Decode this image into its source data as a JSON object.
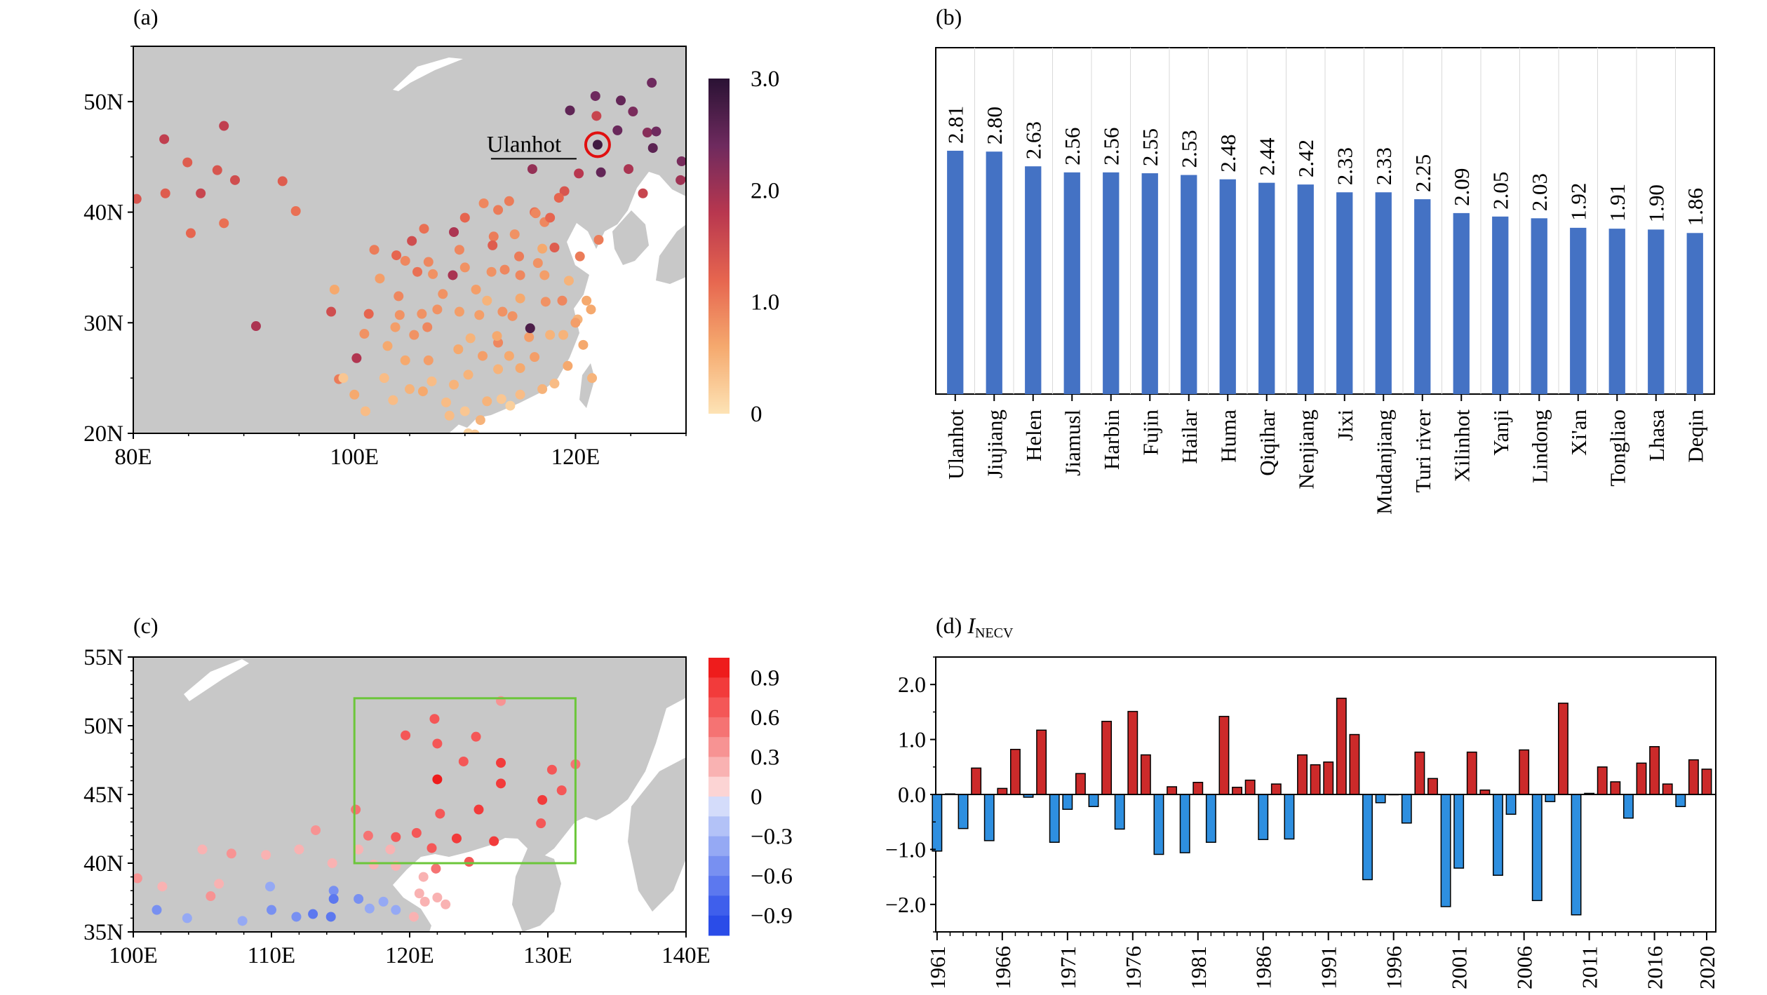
{
  "panels": {
    "a": {
      "label": "(a)",
      "annotation": "Ulanhot"
    },
    "b": {
      "label": "(b)"
    },
    "c": {
      "label": "(c)"
    },
    "d": {
      "label_prefix": "(d) ",
      "label_var": "I",
      "label_sub": "NECV"
    }
  },
  "colors": {
    "land": "#c8c8c8",
    "ocean": "#ffffff",
    "bar_b": "#4472c4",
    "bar_pos": "#cc2a2a",
    "bar_neg": "#2e8fe0",
    "box": "#6cc63a",
    "highlight": "#e01010"
  },
  "chart_data": [
    {
      "id": "a",
      "type": "scatter",
      "map": true,
      "xlim": [
        80,
        130
      ],
      "ylim": [
        20,
        55
      ],
      "x_ticks": [
        80,
        100,
        120
      ],
      "x_tick_labels": [
        "80E",
        "100E",
        "120E"
      ],
      "y_ticks": [
        20,
        30,
        40,
        50
      ],
      "y_tick_labels": [
        "20N",
        "30N",
        "40N",
        "50N"
      ],
      "colorbar": {
        "min": 0,
        "max": 3.0,
        "ticks": [
          "0",
          "1.0",
          "2.0",
          "3.0"
        ],
        "colors": [
          "#fde3b5",
          "#f5a96e",
          "#e6654f",
          "#b8374f",
          "#6e2a5e",
          "#2a1234"
        ]
      },
      "highlight": {
        "lon": 122.0,
        "lat": 46.1,
        "value": 2.81
      },
      "points": [
        [
          122.0,
          46.1,
          2.81
        ],
        [
          121.8,
          50.5,
          2.4
        ],
        [
          124.1,
          50.1,
          2.5
        ],
        [
          119.5,
          49.2,
          2.53
        ],
        [
          121.9,
          48.7,
          1.6
        ],
        [
          123.8,
          47.4,
          2.44
        ],
        [
          126.5,
          47.2,
          2.2
        ],
        [
          125.2,
          49.1,
          2.3
        ],
        [
          127.0,
          45.8,
          2.56
        ],
        [
          129.6,
          44.6,
          2.33
        ],
        [
          122.3,
          43.6,
          2.5
        ],
        [
          124.8,
          43.9,
          1.91
        ],
        [
          126.9,
          51.7,
          2.4
        ],
        [
          127.3,
          47.3,
          2.4
        ],
        [
          130.3,
          43.0,
          2.05
        ],
        [
          119.0,
          41.9,
          1.4
        ],
        [
          116.1,
          43.9,
          2.09
        ],
        [
          120.3,
          43.5,
          1.8
        ],
        [
          129.5,
          42.9,
          2.0
        ],
        [
          126.1,
          41.7,
          1.6
        ],
        [
          118.5,
          41.3,
          1.2
        ],
        [
          114.0,
          41.0,
          1.0
        ],
        [
          111.7,
          40.8,
          0.9
        ],
        [
          109.0,
          38.2,
          1.9
        ],
        [
          116.3,
          40.0,
          1.1
        ],
        [
          117.2,
          39.1,
          0.9
        ],
        [
          113.0,
          40.2,
          1.0
        ],
        [
          112.6,
          37.8,
          1.0
        ],
        [
          114.5,
          38.0,
          0.8
        ],
        [
          116.4,
          39.9,
          0.9
        ],
        [
          117.0,
          36.7,
          0.6
        ],
        [
          120.4,
          36.0,
          1.0
        ],
        [
          118.8,
          32.0,
          0.9
        ],
        [
          121.4,
          31.2,
          0.6
        ],
        [
          120.2,
          30.3,
          0.5
        ],
        [
          117.3,
          31.9,
          0.8
        ],
        [
          115.8,
          28.7,
          0.7
        ],
        [
          114.3,
          30.6,
          0.8
        ],
        [
          113.0,
          28.2,
          0.9
        ],
        [
          115.9,
          29.5,
          2.7
        ],
        [
          112.9,
          28.8,
          0.6
        ],
        [
          108.9,
          34.3,
          1.92
        ],
        [
          103.8,
          36.1,
          1.2
        ],
        [
          101.8,
          36.6,
          1.0
        ],
        [
          106.3,
          38.5,
          1.1
        ],
        [
          104.1,
          30.7,
          0.8
        ],
        [
          106.6,
          29.6,
          0.9
        ],
        [
          106.7,
          26.6,
          0.7
        ],
        [
          102.7,
          25.0,
          0.4
        ],
        [
          108.3,
          22.8,
          0.4
        ],
        [
          110.3,
          25.3,
          0.5
        ],
        [
          113.3,
          23.1,
          0.3
        ],
        [
          114.1,
          22.5,
          0.2
        ],
        [
          110.3,
          20.0,
          0.2
        ],
        [
          119.3,
          26.1,
          0.6
        ],
        [
          118.1,
          24.5,
          0.4
        ],
        [
          121.5,
          25.0,
          0.5
        ],
        [
          117.7,
          39.5,
          1.2
        ],
        [
          122.1,
          37.5,
          1.0
        ],
        [
          118.1,
          36.8,
          1.3
        ],
        [
          87.6,
          43.8,
          1.4
        ],
        [
          86.1,
          41.7,
          1.6
        ],
        [
          89.2,
          42.9,
          1.5
        ],
        [
          84.9,
          44.5,
          1.3
        ],
        [
          82.8,
          46.6,
          1.7
        ],
        [
          88.2,
          47.8,
          1.7
        ],
        [
          80.3,
          41.2,
          1.4
        ],
        [
          82.9,
          41.7,
          1.3
        ],
        [
          85.2,
          38.1,
          1.2
        ],
        [
          88.2,
          39.0,
          1.1
        ],
        [
          93.5,
          42.8,
          1.3
        ],
        [
          94.7,
          40.1,
          1.1
        ],
        [
          91.1,
          29.7,
          1.9
        ],
        [
          100.2,
          26.8,
          1.86
        ],
        [
          98.6,
          24.9,
          1.0
        ],
        [
          97.9,
          31.0,
          1.5
        ],
        [
          98.2,
          33.0,
          0.6
        ],
        [
          102.3,
          34.0,
          0.7
        ],
        [
          100.9,
          29.0,
          0.8
        ],
        [
          101.3,
          30.8,
          1.2
        ],
        [
          104.6,
          35.6,
          0.9
        ],
        [
          106.7,
          35.5,
          0.9
        ],
        [
          105.7,
          34.6,
          1.1
        ],
        [
          107.1,
          34.4,
          0.8
        ],
        [
          109.5,
          36.6,
          0.9
        ],
        [
          110.0,
          35.0,
          0.8
        ],
        [
          111.0,
          33.0,
          0.7
        ],
        [
          112.4,
          34.6,
          0.8
        ],
        [
          113.6,
          34.8,
          0.9
        ],
        [
          115.0,
          34.3,
          0.9
        ],
        [
          116.6,
          35.4,
          0.8
        ],
        [
          114.9,
          36.0,
          1.0
        ],
        [
          108.0,
          32.6,
          0.8
        ],
        [
          109.5,
          31.0,
          0.7
        ],
        [
          111.3,
          30.7,
          0.7
        ],
        [
          113.4,
          31.0,
          0.8
        ],
        [
          112.0,
          32.0,
          0.5
        ],
        [
          110.5,
          28.6,
          0.5
        ],
        [
          109.4,
          27.6,
          0.6
        ],
        [
          111.6,
          27.0,
          0.7
        ],
        [
          113.0,
          25.8,
          0.5
        ],
        [
          115.0,
          25.9,
          0.6
        ],
        [
          114.0,
          27.0,
          0.6
        ],
        [
          116.3,
          26.9,
          0.7
        ],
        [
          117.7,
          28.9,
          0.5
        ],
        [
          118.9,
          28.9,
          0.5
        ],
        [
          120.7,
          28.0,
          0.6
        ],
        [
          120.0,
          30.0,
          0.7
        ],
        [
          121.0,
          32.0,
          0.6
        ],
        [
          119.4,
          33.8,
          0.5
        ],
        [
          117.2,
          34.3,
          0.7
        ],
        [
          115.0,
          32.2,
          0.6
        ],
        [
          105.4,
          28.9,
          0.8
        ],
        [
          107.5,
          31.2,
          0.8
        ],
        [
          103.7,
          29.6,
          0.7
        ],
        [
          104.6,
          26.6,
          0.6
        ],
        [
          103.0,
          27.9,
          0.6
        ],
        [
          105.0,
          24.0,
          0.5
        ],
        [
          107.0,
          24.7,
          0.4
        ],
        [
          109.0,
          24.4,
          0.5
        ],
        [
          110.0,
          22.0,
          0.3
        ],
        [
          112.0,
          22.9,
          0.5
        ],
        [
          115.0,
          23.5,
          0.4
        ],
        [
          117.0,
          24.0,
          0.5
        ],
        [
          101.0,
          22.0,
          0.4
        ],
        [
          100.0,
          23.5,
          0.6
        ],
        [
          99.0,
          25.0,
          0.3
        ],
        [
          103.5,
          23.0,
          0.4
        ],
        [
          111.4,
          21.2,
          0.5
        ],
        [
          108.6,
          21.6,
          0.4
        ],
        [
          106.2,
          23.8,
          0.6
        ],
        [
          110.9,
          19.9,
          0.3
        ],
        [
          104.0,
          32.4,
          0.9
        ],
        [
          106.1,
          30.8,
          0.8
        ],
        [
          112.5,
          37.0,
          1.3
        ],
        [
          110.0,
          39.5,
          1.2
        ],
        [
          105.2,
          37.4,
          1.5
        ]
      ]
    },
    {
      "id": "b",
      "type": "bar",
      "categories": [
        "Ulanhot",
        "Jiujiang",
        "Helen",
        "Jiamusl",
        "Harbin",
        "Fujin",
        "Hailar",
        "Huma",
        "Qiqihar",
        "Nenjiang",
        "Jixi",
        "Mudanjiang",
        "Turi river",
        "Xilinhot",
        "Yanji",
        "Lindong",
        "Xi'an",
        "Tongliao",
        "Lhasa",
        "Deqin"
      ],
      "values": [
        2.81,
        2.8,
        2.63,
        2.56,
        2.56,
        2.55,
        2.53,
        2.48,
        2.44,
        2.42,
        2.33,
        2.33,
        2.25,
        2.09,
        2.05,
        2.03,
        1.92,
        1.91,
        1.9,
        1.86
      ],
      "value_labels": [
        "2.81",
        "2.80",
        "2.63",
        "2.56",
        "2.56",
        "2.55",
        "2.53",
        "2.48",
        "2.44",
        "2.42",
        "2.33",
        "2.33",
        "2.25",
        "2.09",
        "2.05",
        "2.03",
        "1.92",
        "1.91",
        "1.90",
        "1.86"
      ],
      "ylim": [
        0,
        4.0
      ]
    },
    {
      "id": "c",
      "type": "scatter",
      "map": true,
      "xlim": [
        100,
        140
      ],
      "ylim": [
        35,
        55
      ],
      "x_ticks": [
        100,
        110,
        120,
        130,
        140
      ],
      "x_tick_labels": [
        "100E",
        "110E",
        "120E",
        "130E",
        "140E"
      ],
      "y_ticks": [
        35,
        40,
        45,
        50,
        55
      ],
      "y_tick_labels": [
        "35N",
        "40N",
        "45N",
        "50N",
        "55N"
      ],
      "colorbar": {
        "levels": [
          1.05,
          0.9,
          0.75,
          0.6,
          0.45,
          0.3,
          0.15,
          0,
          -0.15,
          -0.3,
          -0.45,
          -0.6,
          -0.75,
          -0.9,
          -1.05
        ],
        "colors": [
          "#ee1c1c",
          "#f23b3b",
          "#f45757",
          "#f57373",
          "#f79393",
          "#f9b2b2",
          "#fcd4d4",
          "#d4dcfa",
          "#b3c2f7",
          "#95a9f4",
          "#7890f1",
          "#5c78ef",
          "#3f5fec",
          "#2a4ce8"
        ],
        "tick_labels": [
          "0.9",
          "0.6",
          "0.3",
          "0",
          "−0.3",
          "−0.6",
          "−0.9"
        ],
        "tick_values": [
          0.9,
          0.6,
          0.3,
          0,
          -0.3,
          -0.6,
          -0.9
        ]
      },
      "box": {
        "lon": [
          116,
          132
        ],
        "lat": [
          40,
          52
        ]
      },
      "points": [
        [
          122.0,
          46.1,
          0.95
        ],
        [
          121.8,
          50.5,
          0.7
        ],
        [
          124.8,
          49.2,
          0.7
        ],
        [
          119.7,
          49.3,
          0.75
        ],
        [
          122.0,
          48.7,
          0.7
        ],
        [
          123.9,
          47.4,
          0.72
        ],
        [
          126.6,
          47.3,
          0.8
        ],
        [
          126.6,
          45.8,
          0.8
        ],
        [
          126.6,
          51.8,
          0.45
        ],
        [
          130.3,
          46.8,
          0.75
        ],
        [
          131.0,
          45.3,
          0.75
        ],
        [
          129.6,
          44.6,
          0.8
        ],
        [
          122.2,
          43.6,
          0.75
        ],
        [
          125.0,
          43.9,
          0.8
        ],
        [
          129.5,
          42.9,
          0.7
        ],
        [
          132.0,
          47.2,
          0.5
        ],
        [
          116.1,
          43.9,
          0.55
        ],
        [
          117.0,
          42.0,
          0.6
        ],
        [
          119.0,
          41.9,
          0.7
        ],
        [
          120.5,
          42.2,
          0.75
        ],
        [
          121.6,
          41.1,
          0.75
        ],
        [
          123.4,
          41.8,
          0.8
        ],
        [
          126.1,
          41.6,
          0.8
        ],
        [
          124.3,
          40.1,
          0.7
        ],
        [
          118.6,
          41.0,
          0.3
        ],
        [
          116.3,
          41.0,
          0.25
        ],
        [
          117.4,
          39.9,
          0.25
        ],
        [
          119.0,
          39.8,
          0.2
        ],
        [
          121.9,
          39.6,
          0.5
        ],
        [
          121.0,
          39.0,
          0.2
        ],
        [
          122.0,
          37.5,
          0.3
        ],
        [
          120.7,
          37.8,
          0.2
        ],
        [
          118.1,
          37.2,
          -0.3
        ],
        [
          114.4,
          40.0,
          0.25
        ],
        [
          113.2,
          42.4,
          0.4
        ],
        [
          112.0,
          41.0,
          0.3
        ],
        [
          109.6,
          40.6,
          0.2
        ],
        [
          107.1,
          40.7,
          0.35
        ],
        [
          105.0,
          41.0,
          0.3
        ],
        [
          102.1,
          38.3,
          0.3
        ],
        [
          100.3,
          38.9,
          0.4
        ],
        [
          101.7,
          36.6,
          -0.5
        ],
        [
          103.9,
          36.0,
          -0.4
        ],
        [
          105.6,
          37.6,
          0.4
        ],
        [
          106.2,
          38.5,
          0.3
        ],
        [
          107.9,
          35.8,
          -0.35
        ],
        [
          109.9,
          38.3,
          -0.3
        ],
        [
          110.0,
          36.6,
          -0.45
        ],
        [
          111.8,
          36.1,
          -0.55
        ],
        [
          113.0,
          36.3,
          -0.7
        ],
        [
          114.5,
          38.0,
          -0.5
        ],
        [
          114.5,
          37.4,
          -0.6
        ],
        [
          114.3,
          36.1,
          -0.7
        ],
        [
          116.3,
          37.4,
          -0.55
        ],
        [
          117.1,
          36.7,
          -0.4
        ],
        [
          119.0,
          36.6,
          -0.3
        ],
        [
          120.3,
          36.1,
          0.3
        ],
        [
          122.6,
          37.0,
          0.3
        ],
        [
          121.1,
          37.2,
          0.3
        ]
      ]
    },
    {
      "id": "d",
      "type": "bar",
      "x": [
        1961,
        1962,
        1963,
        1964,
        1965,
        1966,
        1967,
        1968,
        1969,
        1970,
        1971,
        1972,
        1973,
        1974,
        1975,
        1976,
        1977,
        1978,
        1979,
        1980,
        1981,
        1982,
        1983,
        1984,
        1985,
        1986,
        1987,
        1988,
        1989,
        1990,
        1991,
        1992,
        1993,
        1994,
        1995,
        1996,
        1997,
        1998,
        1999,
        2000,
        2001,
        2002,
        2003,
        2004,
        2005,
        2006,
        2007,
        2008,
        2009,
        2010,
        2011,
        2012,
        2013,
        2014,
        2015,
        2016,
        2017,
        2018,
        2019,
        2020
      ],
      "values": [
        -1.03,
        0.01,
        -0.62,
        0.48,
        -0.84,
        0.11,
        0.82,
        -0.05,
        1.17,
        -0.87,
        -0.27,
        0.38,
        -0.22,
        1.33,
        -0.63,
        1.51,
        0.72,
        -1.09,
        0.14,
        -1.06,
        0.22,
        -0.87,
        1.42,
        0.13,
        0.26,
        -0.82,
        0.19,
        -0.81,
        0.72,
        0.54,
        0.59,
        1.75,
        1.09,
        -1.55,
        -0.15,
        0.0,
        -0.52,
        0.77,
        0.29,
        -2.04,
        -1.34,
        0.77,
        0.08,
        -1.47,
        -0.36,
        0.81,
        -1.93,
        -0.13,
        1.66,
        -2.19,
        0.02,
        0.5,
        0.23,
        -0.43,
        0.57,
        0.87,
        0.19,
        -0.22,
        0.63,
        0.46
      ],
      "ylim": [
        -2.5,
        2.5
      ],
      "y_ticks": [
        -2.0,
        -1.0,
        0.0,
        1.0,
        2.0
      ],
      "y_tick_labels": [
        "−2.0",
        "−1.0",
        "0.0",
        "1.0",
        "2.0"
      ],
      "x_tick_labels": [
        "1961",
        "1966",
        "1971",
        "1976",
        "1981",
        "1986",
        "1991",
        "1996",
        "2001",
        "2006",
        "2011",
        "2016",
        "2020"
      ]
    }
  ]
}
